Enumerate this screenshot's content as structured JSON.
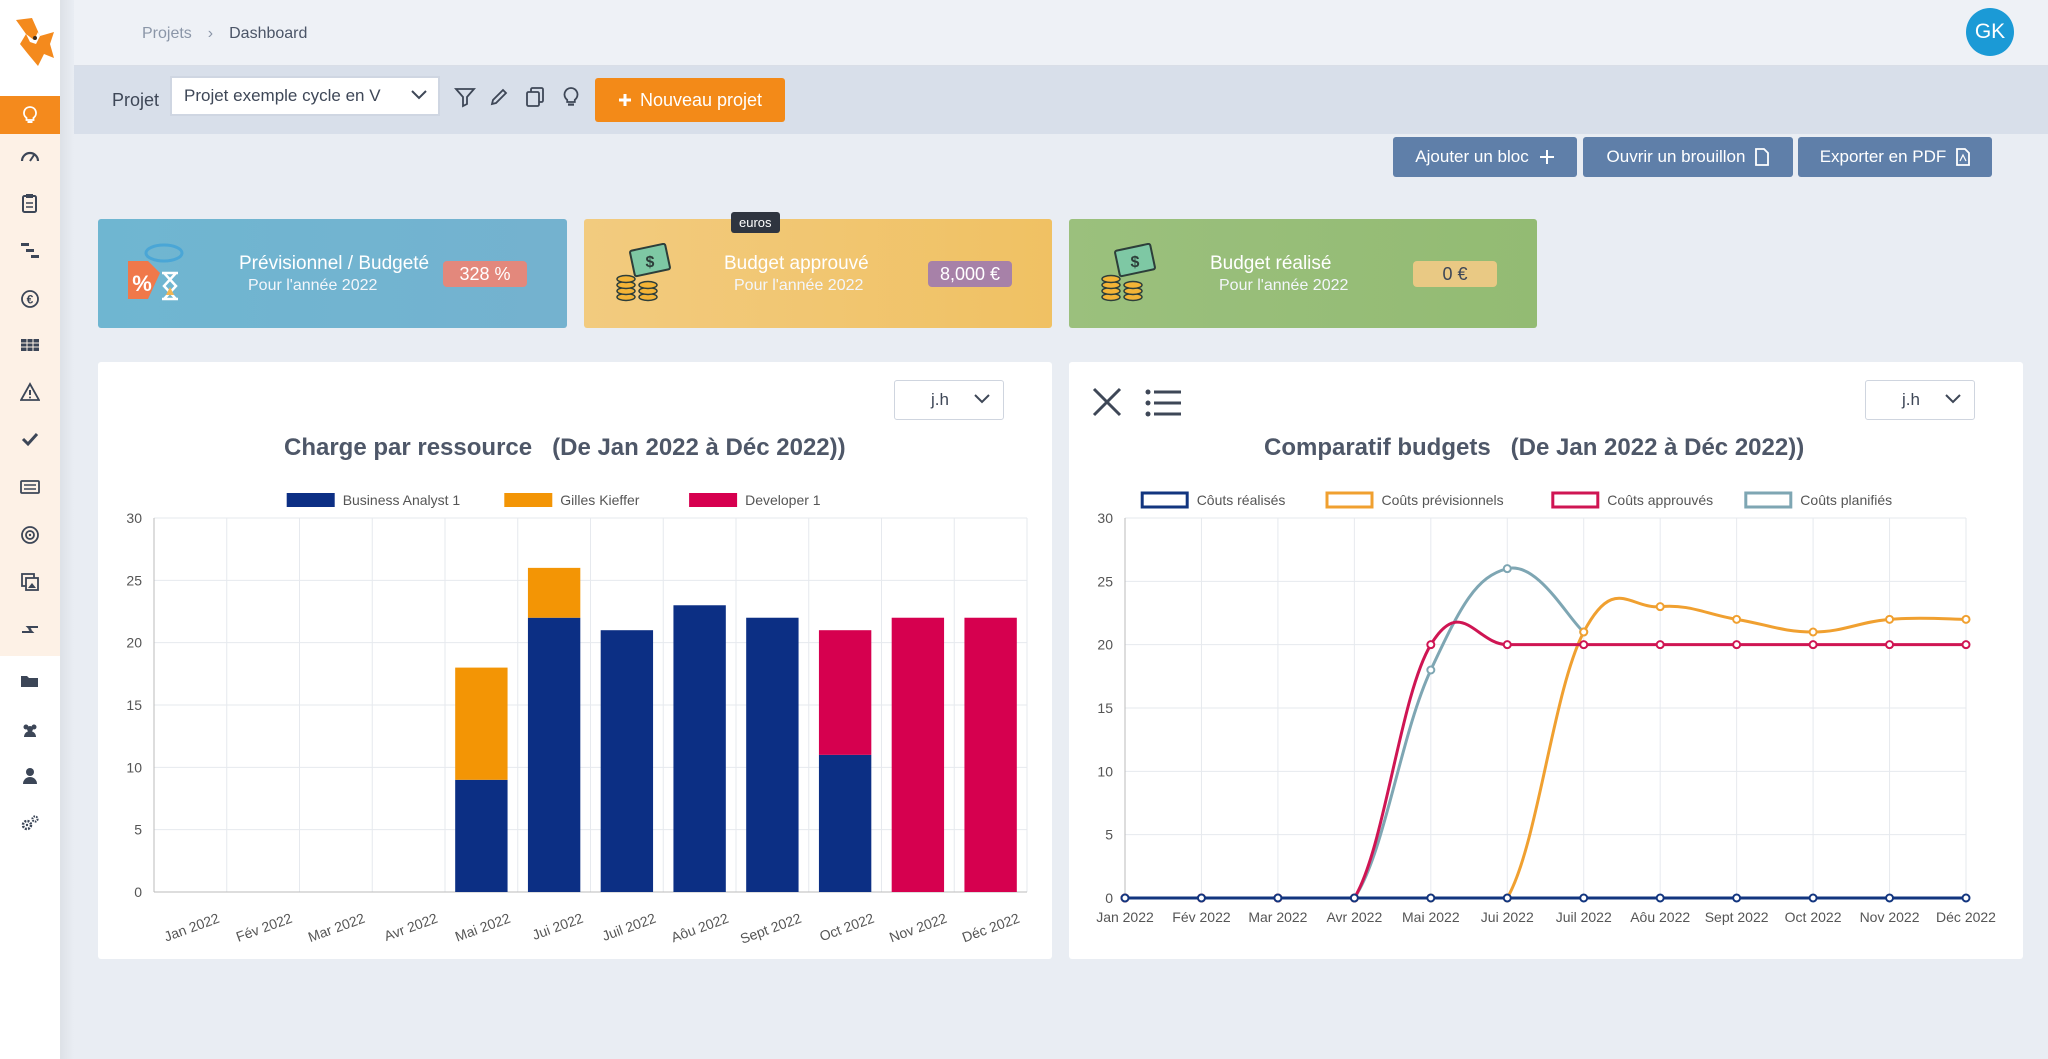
{
  "breadcrumb": {
    "parent": "Projets",
    "separator": "›",
    "current": "Dashboard"
  },
  "user": {
    "initials": "GK"
  },
  "toolbar": {
    "project_label": "Projet",
    "project_value": "Projet exemple cycle en V",
    "new_project_label": "Nouveau projet"
  },
  "actions": {
    "add_block": "Ajouter un bloc",
    "open_draft": "Ouvrir un brouillon",
    "export_pdf": "Exporter en PDF"
  },
  "tooltip": "euros",
  "kpis": [
    {
      "title": "Prévisionnel / Budgeté",
      "subtitle": "Pour l'année 2022",
      "value": "328 %"
    },
    {
      "title": "Budget approuvé",
      "subtitle": "Pour l'année 2022",
      "value": "8,000 €"
    },
    {
      "title": "Budget réalisé",
      "subtitle": "Pour l'année 2022",
      "value": "0 €"
    }
  ],
  "colors": {
    "accent": "#f38a18",
    "primary_btn": "#5f7fa9",
    "sidebar_active": "#f48a1d"
  },
  "chart_data": [
    {
      "type": "bar",
      "title": "Charge par ressource   (De Jan 2022 à Déc 2022))",
      "unit_selector": "j.h",
      "stacked": true,
      "categories": [
        "Jan 2022",
        "Fév 2022",
        "Mar 2022",
        "Avr 2022",
        "Mai 2022",
        "Jui 2022",
        "Juil 2022",
        "Aôu 2022",
        "Sept 2022",
        "Oct 2022",
        "Nov 2022",
        "Déc 2022"
      ],
      "series": [
        {
          "name": "Business Analyst 1",
          "color": "#0c2f84",
          "values": [
            0,
            0,
            0,
            0,
            9,
            22,
            21,
            23,
            22,
            11,
            0,
            0
          ]
        },
        {
          "name": "Gilles Kieffer",
          "color": "#f39505",
          "values": [
            0,
            0,
            0,
            0,
            9,
            4,
            0,
            0,
            0,
            0,
            0,
            0
          ]
        },
        {
          "name": "Developer 1",
          "color": "#d6004f",
          "values": [
            0,
            0,
            0,
            0,
            0,
            0,
            0,
            0,
            0,
            10,
            22,
            22
          ]
        }
      ],
      "ylim": [
        0,
        30
      ],
      "yticks": [
        0,
        5,
        10,
        15,
        20,
        25,
        30
      ],
      "grid": true,
      "legend": "top"
    },
    {
      "type": "line",
      "title": "Comparatif budgets   (De Jan 2022 à Déc 2022))",
      "unit_selector": "j.h",
      "categories": [
        "Jan 2022",
        "Fév 2022",
        "Mar 2022",
        "Avr 2022",
        "Mai 2022",
        "Jui 2022",
        "Juil 2022",
        "Aôu 2022",
        "Sept 2022",
        "Oct 2022",
        "Nov 2022",
        "Déc 2022"
      ],
      "series": [
        {
          "name": "Côuts réalisés",
          "color": "#12357f",
          "values": [
            0,
            0,
            0,
            0,
            0,
            0,
            0,
            0,
            0,
            0,
            0,
            0
          ]
        },
        {
          "name": "Coûts prévisionnels",
          "color": "#f0a030",
          "values": [
            0,
            0,
            0,
            0,
            0,
            0,
            21,
            23,
            22,
            21,
            22,
            22
          ]
        },
        {
          "name": "Coûts approuvés",
          "color": "#cf1553",
          "values": [
            0,
            0,
            0,
            0,
            20,
            20,
            20,
            20,
            20,
            20,
            20,
            20
          ]
        },
        {
          "name": "Coûts planifiés",
          "color": "#7ea6b3",
          "values": [
            0,
            0,
            0,
            0,
            18,
            26,
            21,
            null,
            null,
            null,
            null,
            null
          ]
        }
      ],
      "ylim": [
        0,
        30
      ],
      "yticks": [
        0,
        5,
        10,
        15,
        20,
        25,
        30
      ],
      "grid": true,
      "legend": "top"
    }
  ]
}
